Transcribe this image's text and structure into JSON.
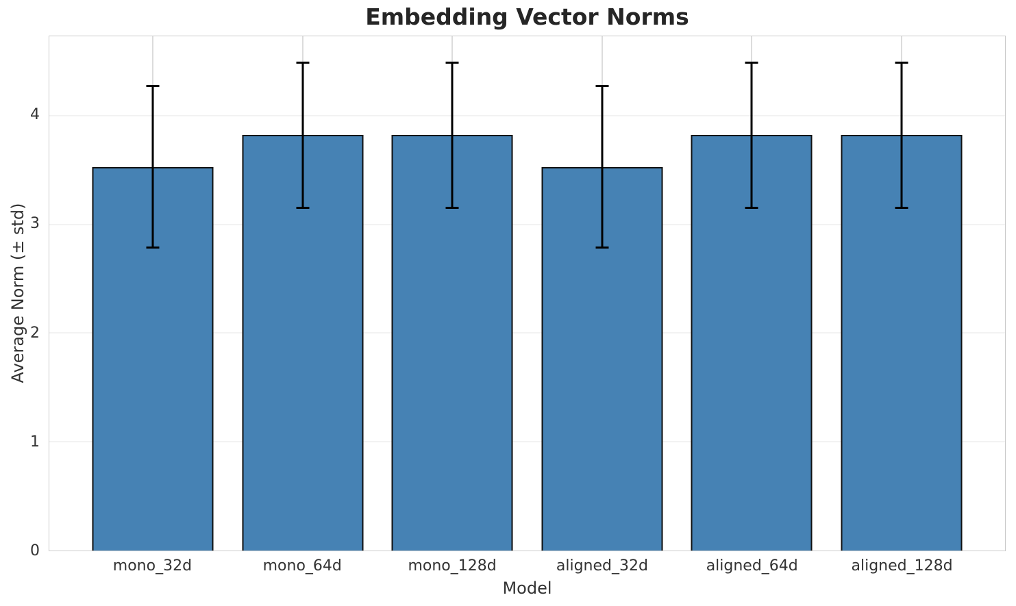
{
  "chart_data": {
    "type": "bar",
    "title": "Embedding Vector Norms",
    "xlabel": "Model",
    "ylabel": "Average Norm (± std)",
    "categories": [
      "mono_32d",
      "mono_64d",
      "mono_128d",
      "aligned_32d",
      "aligned_64d",
      "aligned_128d"
    ],
    "series": [
      {
        "name": "Average Norm",
        "values": [
          3.53,
          3.82,
          3.82,
          3.53,
          3.82,
          3.82
        ]
      }
    ],
    "errors": [
      0.75,
      0.68,
      0.68,
      0.75,
      0.68,
      0.68
    ],
    "error_tops": [
      4.28,
      4.5,
      4.5,
      4.28,
      4.5,
      4.5
    ],
    "error_bottoms": [
      2.78,
      3.14,
      3.14,
      2.78,
      3.14,
      3.14
    ],
    "ylim": [
      0,
      4.73
    ],
    "yticks": [
      0,
      1,
      2,
      3,
      4
    ],
    "grid": true,
    "legend": false,
    "bar_width_fraction": 0.81,
    "colors": {
      "bar_fill": "#4682b4",
      "bar_edge": "#111111",
      "error_bar": "#000000",
      "grid_horizontal": "#f2f2f2",
      "grid_vertical": "#dcdcdc",
      "spine": "#c9c9c9",
      "title_text": "#262626",
      "tick_text": "#333333"
    }
  }
}
